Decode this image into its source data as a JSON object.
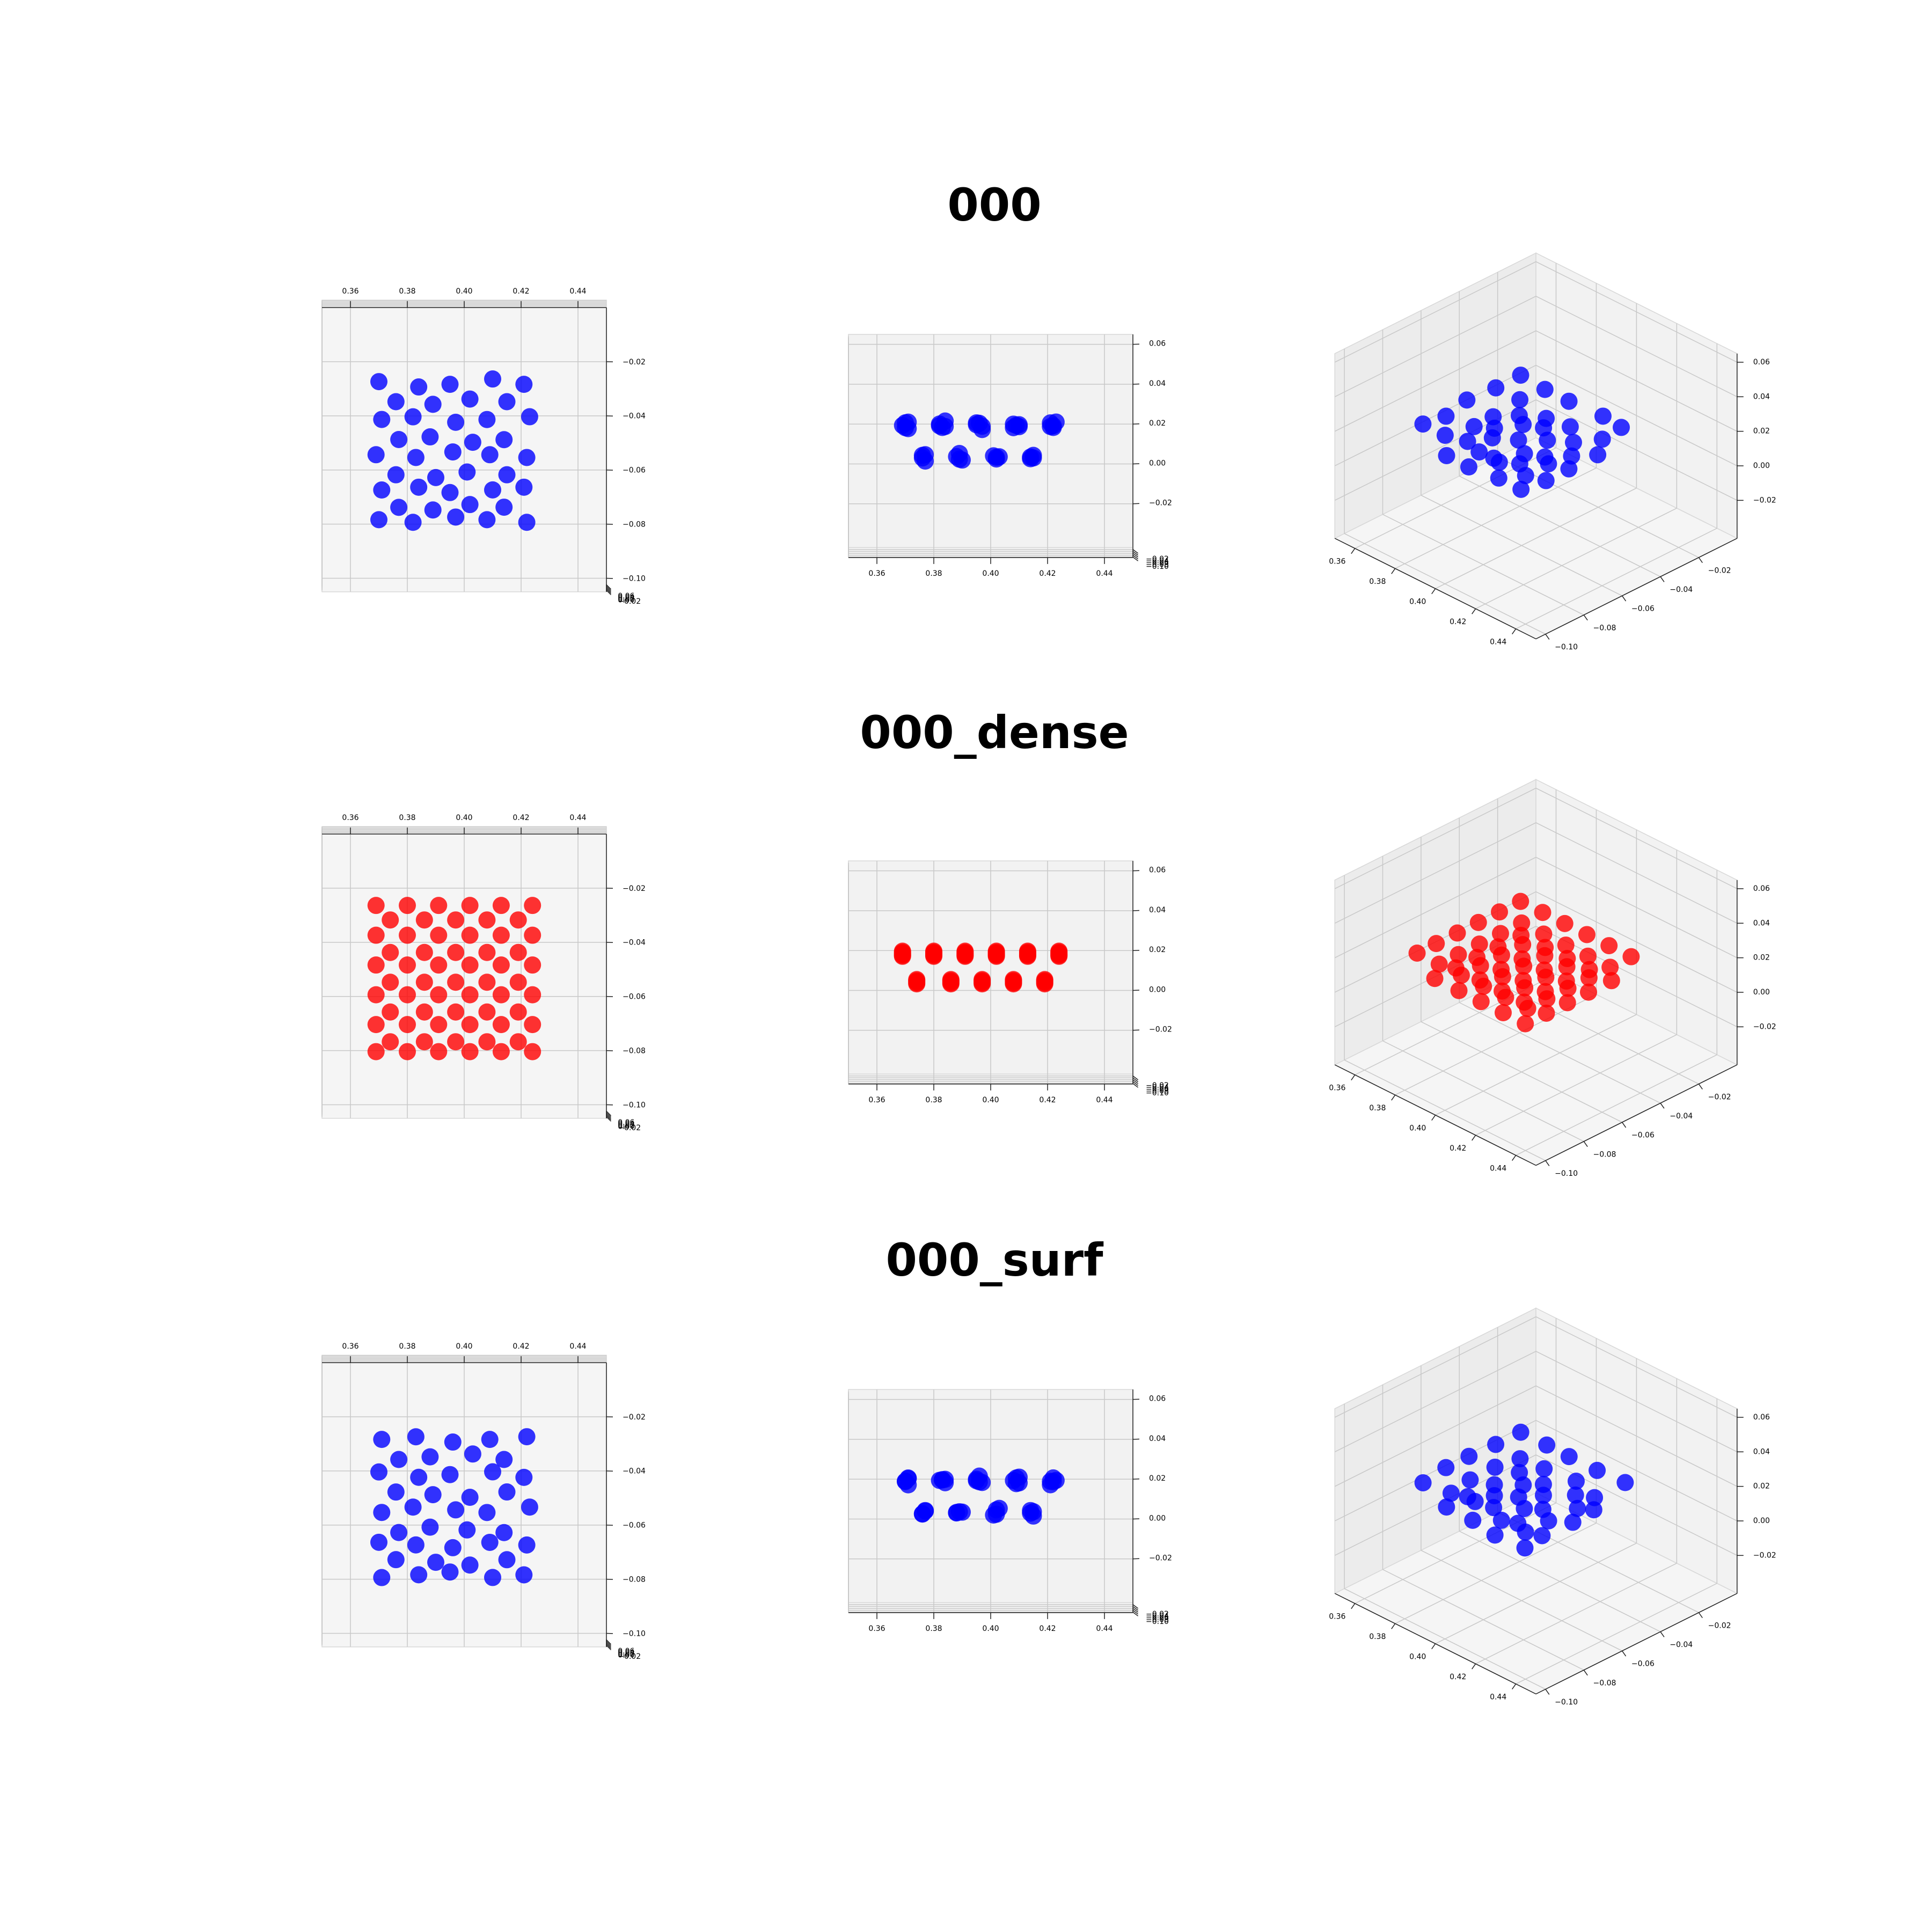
{
  "chart_data": [
    {
      "type": "scatter3d",
      "title": "000",
      "color": "#0000ff",
      "x": [
        0.37,
        0.384,
        0.395,
        0.41,
        0.421,
        0.371,
        0.382,
        0.397,
        0.408,
        0.423,
        0.369,
        0.383,
        0.396,
        0.409,
        0.422,
        0.371,
        0.384,
        0.395,
        0.41,
        0.421,
        0.37,
        0.382,
        0.397,
        0.408,
        0.422,
        0.376,
        0.389,
        0.402,
        0.415,
        0.377,
        0.388,
        0.403,
        0.414,
        0.376,
        0.39,
        0.401,
        0.415,
        0.377,
        0.389,
        0.402,
        0.414
      ],
      "y": [
        -0.029,
        -0.031,
        -0.03,
        -0.028,
        -0.03,
        -0.043,
        -0.042,
        -0.044,
        -0.043,
        -0.042,
        -0.056,
        -0.057,
        -0.055,
        -0.056,
        -0.057,
        -0.069,
        -0.068,
        -0.07,
        -0.069,
        -0.068,
        -0.08,
        -0.081,
        -0.079,
        -0.08,
        -0.081,
        -0.036,
        -0.037,
        -0.035,
        -0.036,
        -0.05,
        -0.049,
        -0.051,
        -0.05,
        -0.063,
        -0.064,
        -0.062,
        -0.063,
        -0.075,
        -0.076,
        -0.074,
        -0.075
      ],
      "z": [
        0.022,
        0.023,
        0.022,
        0.021,
        0.022,
        0.023,
        0.022,
        0.021,
        0.022,
        0.023,
        0.022,
        0.021,
        0.023,
        0.022,
        0.021,
        0.021,
        0.022,
        0.023,
        0.022,
        0.022,
        0.022,
        0.023,
        0.021,
        0.022,
        0.023,
        0.006,
        0.007,
        0.005,
        0.006,
        0.007,
        0.006,
        0.006,
        0.005,
        0.006,
        0.005,
        0.007,
        0.006,
        0.005,
        0.006,
        0.006,
        0.007
      ],
      "xlim": [
        0.35,
        0.45
      ],
      "ylim": [
        -0.105,
        0.0
      ],
      "zlim": [
        -0.042,
        0.065
      ],
      "xticks": [
        {
          "value": 0.36,
          "label": "0.36"
        },
        {
          "value": 0.38,
          "label": "0.38"
        },
        {
          "value": 0.4,
          "label": "0.40"
        },
        {
          "value": 0.42,
          "label": "0.42"
        },
        {
          "value": 0.44,
          "label": "0.44"
        }
      ],
      "yticks": [
        {
          "value": -0.1,
          "label": "−0.10"
        },
        {
          "value": -0.08,
          "label": "−0.08"
        },
        {
          "value": -0.06,
          "label": "−0.06"
        },
        {
          "value": -0.04,
          "label": "−0.04"
        },
        {
          "value": -0.02,
          "label": "−0.02"
        }
      ],
      "zticks": [
        {
          "value": -0.02,
          "label": "−0.02"
        },
        {
          "value": 0.0,
          "label": "0.00"
        },
        {
          "value": 0.02,
          "label": "0.02"
        },
        {
          "value": 0.04,
          "label": "0.04"
        },
        {
          "value": 0.06,
          "label": "0.06"
        }
      ],
      "grid": true
    },
    {
      "type": "scatter3d",
      "title": "000_dense",
      "color": "#ff0000",
      "x": [
        0.369,
        0.38,
        0.391,
        0.402,
        0.413,
        0.424,
        0.369,
        0.38,
        0.391,
        0.402,
        0.413,
        0.424,
        0.369,
        0.38,
        0.391,
        0.402,
        0.413,
        0.424,
        0.369,
        0.38,
        0.391,
        0.402,
        0.413,
        0.424,
        0.369,
        0.38,
        0.391,
        0.402,
        0.413,
        0.424,
        0.369,
        0.38,
        0.391,
        0.402,
        0.413,
        0.424,
        0.374,
        0.386,
        0.397,
        0.408,
        0.419,
        0.374,
        0.386,
        0.397,
        0.408,
        0.419,
        0.374,
        0.386,
        0.397,
        0.408,
        0.419,
        0.374,
        0.386,
        0.397,
        0.408,
        0.419,
        0.374,
        0.386,
        0.397,
        0.408,
        0.419
      ],
      "y": [
        -0.028,
        -0.028,
        -0.028,
        -0.028,
        -0.028,
        -0.028,
        -0.039,
        -0.039,
        -0.039,
        -0.039,
        -0.039,
        -0.039,
        -0.05,
        -0.05,
        -0.05,
        -0.05,
        -0.05,
        -0.05,
        -0.061,
        -0.061,
        -0.061,
        -0.061,
        -0.061,
        -0.061,
        -0.072,
        -0.072,
        -0.072,
        -0.072,
        -0.072,
        -0.072,
        -0.082,
        -0.082,
        -0.082,
        -0.082,
        -0.082,
        -0.082,
        -0.033,
        -0.033,
        -0.033,
        -0.033,
        -0.033,
        -0.045,
        -0.045,
        -0.045,
        -0.045,
        -0.045,
        -0.056,
        -0.056,
        -0.056,
        -0.056,
        -0.056,
        -0.067,
        -0.067,
        -0.067,
        -0.067,
        -0.067,
        -0.078,
        -0.078,
        -0.078,
        -0.078,
        -0.078
      ],
      "z": [
        0.021,
        0.021,
        0.021,
        0.021,
        0.021,
        0.021,
        0.021,
        0.021,
        0.021,
        0.021,
        0.021,
        0.021,
        0.021,
        0.021,
        0.021,
        0.021,
        0.021,
        0.021,
        0.021,
        0.021,
        0.021,
        0.021,
        0.021,
        0.021,
        0.021,
        0.021,
        0.021,
        0.021,
        0.021,
        0.021,
        0.021,
        0.021,
        0.021,
        0.021,
        0.021,
        0.021,
        0.007,
        0.007,
        0.007,
        0.007,
        0.007,
        0.007,
        0.007,
        0.007,
        0.007,
        0.007,
        0.007,
        0.007,
        0.007,
        0.007,
        0.007,
        0.007,
        0.007,
        0.007,
        0.007,
        0.007,
        0.007,
        0.007,
        0.007,
        0.007,
        0.007
      ],
      "xlim": [
        0.35,
        0.45
      ],
      "ylim": [
        -0.105,
        0.0
      ],
      "zlim": [
        -0.042,
        0.065
      ],
      "xticks": [
        {
          "value": 0.36,
          "label": "0.36"
        },
        {
          "value": 0.38,
          "label": "0.38"
        },
        {
          "value": 0.4,
          "label": "0.40"
        },
        {
          "value": 0.42,
          "label": "0.42"
        },
        {
          "value": 0.44,
          "label": "0.44"
        }
      ],
      "yticks": [
        {
          "value": -0.1,
          "label": "−0.10"
        },
        {
          "value": -0.08,
          "label": "−0.08"
        },
        {
          "value": -0.06,
          "label": "−0.06"
        },
        {
          "value": -0.04,
          "label": "−0.04"
        },
        {
          "value": -0.02,
          "label": "−0.02"
        }
      ],
      "zticks": [
        {
          "value": -0.02,
          "label": "−0.02"
        },
        {
          "value": 0.0,
          "label": "0.00"
        },
        {
          "value": 0.02,
          "label": "0.02"
        },
        {
          "value": 0.04,
          "label": "0.04"
        },
        {
          "value": 0.06,
          "label": "0.06"
        }
      ],
      "grid": true
    },
    {
      "type": "scatter3d",
      "title": "000_surf",
      "color": "#0000ff",
      "x": [
        0.371,
        0.383,
        0.396,
        0.409,
        0.422,
        0.37,
        0.384,
        0.395,
        0.41,
        0.421,
        0.371,
        0.382,
        0.397,
        0.408,
        0.423,
        0.37,
        0.383,
        0.396,
        0.409,
        0.422,
        0.371,
        0.384,
        0.395,
        0.41,
        0.421,
        0.377,
        0.388,
        0.403,
        0.414,
        0.376,
        0.389,
        0.402,
        0.415,
        0.377,
        0.388,
        0.401,
        0.414,
        0.376,
        0.39,
        0.402,
        0.415
      ],
      "y": [
        -0.03,
        -0.029,
        -0.031,
        -0.03,
        -0.029,
        -0.042,
        -0.044,
        -0.043,
        -0.042,
        -0.044,
        -0.057,
        -0.055,
        -0.056,
        -0.057,
        -0.055,
        -0.068,
        -0.069,
        -0.07,
        -0.068,
        -0.069,
        -0.081,
        -0.08,
        -0.079,
        -0.081,
        -0.08,
        -0.037,
        -0.036,
        -0.035,
        -0.037,
        -0.049,
        -0.05,
        -0.051,
        -0.049,
        -0.064,
        -0.062,
        -0.063,
        -0.064,
        -0.074,
        -0.075,
        -0.076,
        -0.074
      ],
      "z": [
        0.022,
        0.021,
        0.023,
        0.022,
        0.022,
        0.021,
        0.022,
        0.022,
        0.023,
        0.021,
        0.023,
        0.022,
        0.021,
        0.022,
        0.022,
        0.022,
        0.023,
        0.022,
        0.021,
        0.022,
        0.021,
        0.022,
        0.023,
        0.022,
        0.021,
        0.006,
        0.005,
        0.007,
        0.006,
        0.005,
        0.006,
        0.007,
        0.006,
        0.007,
        0.006,
        0.005,
        0.006,
        0.006,
        0.007,
        0.006,
        0.005
      ],
      "xlim": [
        0.35,
        0.45
      ],
      "ylim": [
        -0.105,
        0.0
      ],
      "zlim": [
        -0.042,
        0.065
      ],
      "xticks": [
        {
          "value": 0.36,
          "label": "0.36"
        },
        {
          "value": 0.38,
          "label": "0.38"
        },
        {
          "value": 0.4,
          "label": "0.40"
        },
        {
          "value": 0.42,
          "label": "0.42"
        },
        {
          "value": 0.44,
          "label": "0.44"
        }
      ],
      "yticks": [
        {
          "value": -0.1,
          "label": "−0.10"
        },
        {
          "value": -0.08,
          "label": "−0.08"
        },
        {
          "value": -0.06,
          "label": "−0.06"
        },
        {
          "value": -0.04,
          "label": "−0.04"
        },
        {
          "value": -0.02,
          "label": "−0.02"
        }
      ],
      "zticks": [
        {
          "value": -0.02,
          "label": "−0.02"
        },
        {
          "value": 0.0,
          "label": "0.00"
        },
        {
          "value": 0.02,
          "label": "0.02"
        },
        {
          "value": 0.04,
          "label": "0.04"
        },
        {
          "value": 0.06,
          "label": "0.06"
        }
      ],
      "grid": true
    }
  ]
}
